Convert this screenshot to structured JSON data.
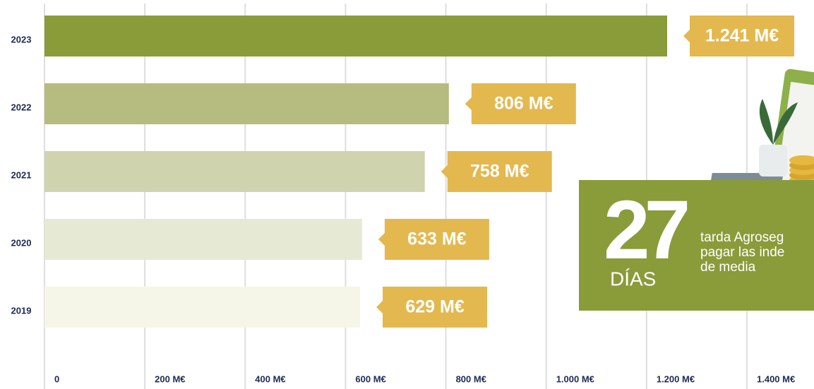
{
  "chart_data": {
    "type": "bar",
    "orientation": "horizontal",
    "categories": [
      "2023",
      "2022",
      "2021",
      "2020",
      "2019"
    ],
    "values": [
      1241,
      806,
      758,
      633,
      629
    ],
    "value_labels": [
      "1.241 M€",
      "806 M€",
      "758 M€",
      "633 M€",
      "629 M€"
    ],
    "colors": [
      "#8a9b3a",
      "#b6bc80",
      "#d0d4ae",
      "#e6e9d4",
      "#f6f6e8"
    ],
    "label_color": "#e3b84f",
    "xlim": [
      0,
      1400
    ],
    "xticks": [
      0,
      {
        "value": 200,
        "label": "200 M€"
      },
      {
        "value": 400,
        "label": "400 M€"
      },
      {
        "value": 600,
        "label": "600 M€"
      },
      {
        "value": 800,
        "label": "800 M€"
      },
      {
        "value": 1000,
        "label": "1.000 M€"
      },
      {
        "value": 1200,
        "label": "1.200 M€"
      },
      {
        "value": 1400,
        "label": "1.400 M€"
      }
    ],
    "grid": true
  },
  "promo": {
    "number": "27",
    "unit": "DÍAS",
    "text": [
      "tarda Agroseg",
      "pagar las inde",
      "de media"
    ]
  }
}
